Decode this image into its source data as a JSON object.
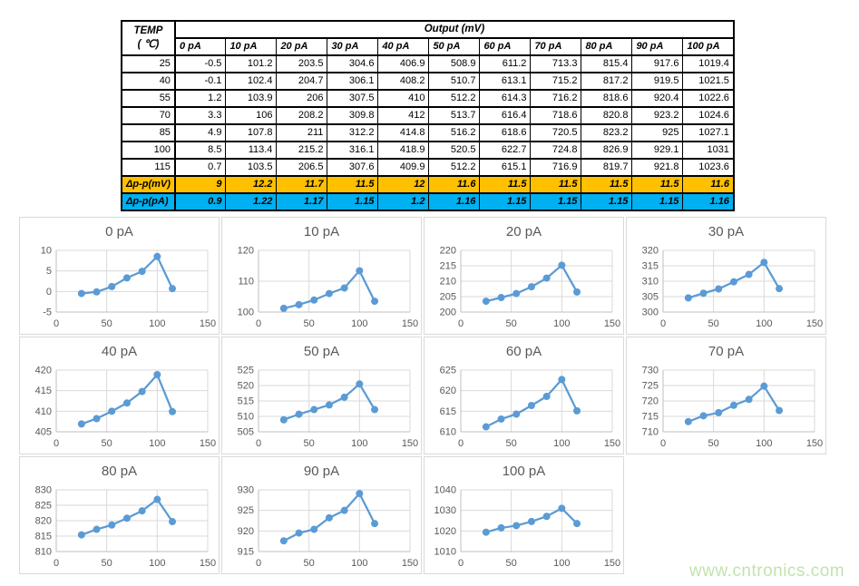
{
  "table": {
    "corner_label_line1": "TEMP",
    "corner_label_line2": "( ℃)",
    "output_header": "Output (mV)",
    "col_headers": [
      "0 pA",
      "10 pA",
      "20 pA",
      "30 pA",
      "40 pA",
      "50 pA",
      "60 pA",
      "70 pA",
      "80 pA",
      "90 pA",
      "100 pA"
    ],
    "temp_rows": [
      {
        "temp": "25",
        "values": [
          "-0.5",
          "101.2",
          "203.5",
          "304.6",
          "406.9",
          "508.9",
          "611.2",
          "713.3",
          "815.4",
          "917.6",
          "1019.4"
        ]
      },
      {
        "temp": "40",
        "values": [
          "-0.1",
          "102.4",
          "204.7",
          "306.1",
          "408.2",
          "510.7",
          "613.1",
          "715.2",
          "817.2",
          "919.5",
          "1021.5"
        ]
      },
      {
        "temp": "55",
        "values": [
          "1.2",
          "103.9",
          "206",
          "307.5",
          "410",
          "512.2",
          "614.3",
          "716.2",
          "818.6",
          "920.4",
          "1022.6"
        ]
      },
      {
        "temp": "70",
        "values": [
          "3.3",
          "106",
          "208.2",
          "309.8",
          "412",
          "513.7",
          "616.4",
          "718.6",
          "820.8",
          "923.2",
          "1024.6"
        ]
      },
      {
        "temp": "85",
        "values": [
          "4.9",
          "107.8",
          "211",
          "312.2",
          "414.8",
          "516.2",
          "618.6",
          "720.5",
          "823.2",
          "925",
          "1027.1"
        ]
      },
      {
        "temp": "100",
        "values": [
          "8.5",
          "113.4",
          "215.2",
          "316.1",
          "418.9",
          "520.5",
          "622.7",
          "724.8",
          "826.9",
          "929.1",
          "1031"
        ]
      },
      {
        "temp": "115",
        "values": [
          "0.7",
          "103.5",
          "206.5",
          "307.6",
          "409.9",
          "512.2",
          "615.1",
          "716.9",
          "819.7",
          "921.8",
          "1023.6"
        ]
      }
    ],
    "delta_mv": {
      "label": "Δp-p(mV)",
      "values": [
        "9",
        "12.2",
        "11.7",
        "11.5",
        "12",
        "11.6",
        "11.5",
        "11.5",
        "11.5",
        "11.5",
        "11.6"
      ]
    },
    "delta_pa": {
      "label": "Δp-p(pA)",
      "values": [
        "0.9",
        "1.22",
        "1.17",
        "1.15",
        "1.2",
        "1.16",
        "1.15",
        "1.15",
        "1.15",
        "1.15",
        "1.16"
      ]
    },
    "colors": {
      "delta_mv_bg": "#FFC000",
      "delta_pa_bg": "#00B0F0"
    }
  },
  "chart_data": {
    "type": "line",
    "x": [
      25,
      40,
      55,
      70,
      85,
      100,
      115
    ],
    "xlim": [
      0,
      150
    ],
    "xticks": [
      0,
      50,
      100,
      150
    ],
    "line_color": "#5B9BD5",
    "gridline_color": "#D9D9D9",
    "axis_color": "#BFBFBF",
    "tick_label_color": "#595959",
    "legend": "none",
    "grid": true,
    "charts": [
      {
        "title": "0 pA",
        "values": [
          -0.5,
          -0.1,
          1.2,
          3.3,
          4.9,
          8.5,
          0.7
        ],
        "ylim": [
          -5,
          10
        ],
        "ystep": 5
      },
      {
        "title": "10 pA",
        "values": [
          101.2,
          102.4,
          103.9,
          106,
          107.8,
          113.4,
          103.5
        ],
        "ylim": [
          100,
          120
        ],
        "ystep": 10
      },
      {
        "title": "20 pA",
        "values": [
          203.5,
          204.7,
          206,
          208.2,
          211,
          215.2,
          206.5
        ],
        "ylim": [
          200,
          220
        ],
        "ystep": 5
      },
      {
        "title": "30 pA",
        "values": [
          304.6,
          306.1,
          307.5,
          309.8,
          312.2,
          316.1,
          307.6
        ],
        "ylim": [
          300,
          320
        ],
        "ystep": 5
      },
      {
        "title": "40 pA",
        "values": [
          406.9,
          408.2,
          410,
          412,
          414.8,
          418.9,
          409.9
        ],
        "ylim": [
          405,
          420
        ],
        "ystep": 5
      },
      {
        "title": "50 pA",
        "values": [
          508.9,
          510.7,
          512.2,
          513.7,
          516.2,
          520.5,
          512.2
        ],
        "ylim": [
          505,
          525
        ],
        "ystep": 5
      },
      {
        "title": "60 pA",
        "values": [
          611.2,
          613.1,
          614.3,
          616.4,
          618.6,
          622.7,
          615.1
        ],
        "ylim": [
          610,
          625
        ],
        "ystep": 5
      },
      {
        "title": "70 pA",
        "values": [
          713.3,
          715.2,
          716.2,
          718.6,
          720.5,
          724.8,
          716.9
        ],
        "ylim": [
          710,
          730
        ],
        "ystep": 5
      },
      {
        "title": "80 pA",
        "values": [
          815.4,
          817.2,
          818.6,
          820.8,
          823.2,
          826.9,
          819.7
        ],
        "ylim": [
          810,
          830
        ],
        "ystep": 5
      },
      {
        "title": "90 pA",
        "values": [
          917.6,
          919.5,
          920.4,
          923.2,
          925,
          929.1,
          921.8
        ],
        "ylim": [
          915,
          930
        ],
        "ystep": 5
      },
      {
        "title": "100 pA",
        "values": [
          1019.4,
          1021.5,
          1022.6,
          1024.6,
          1027.1,
          1031,
          1023.6
        ],
        "ylim": [
          1010,
          1040
        ],
        "ystep": 10
      }
    ]
  },
  "watermark": {
    "text": "www.cntronics.com",
    "color": "#C2E3AF"
  }
}
